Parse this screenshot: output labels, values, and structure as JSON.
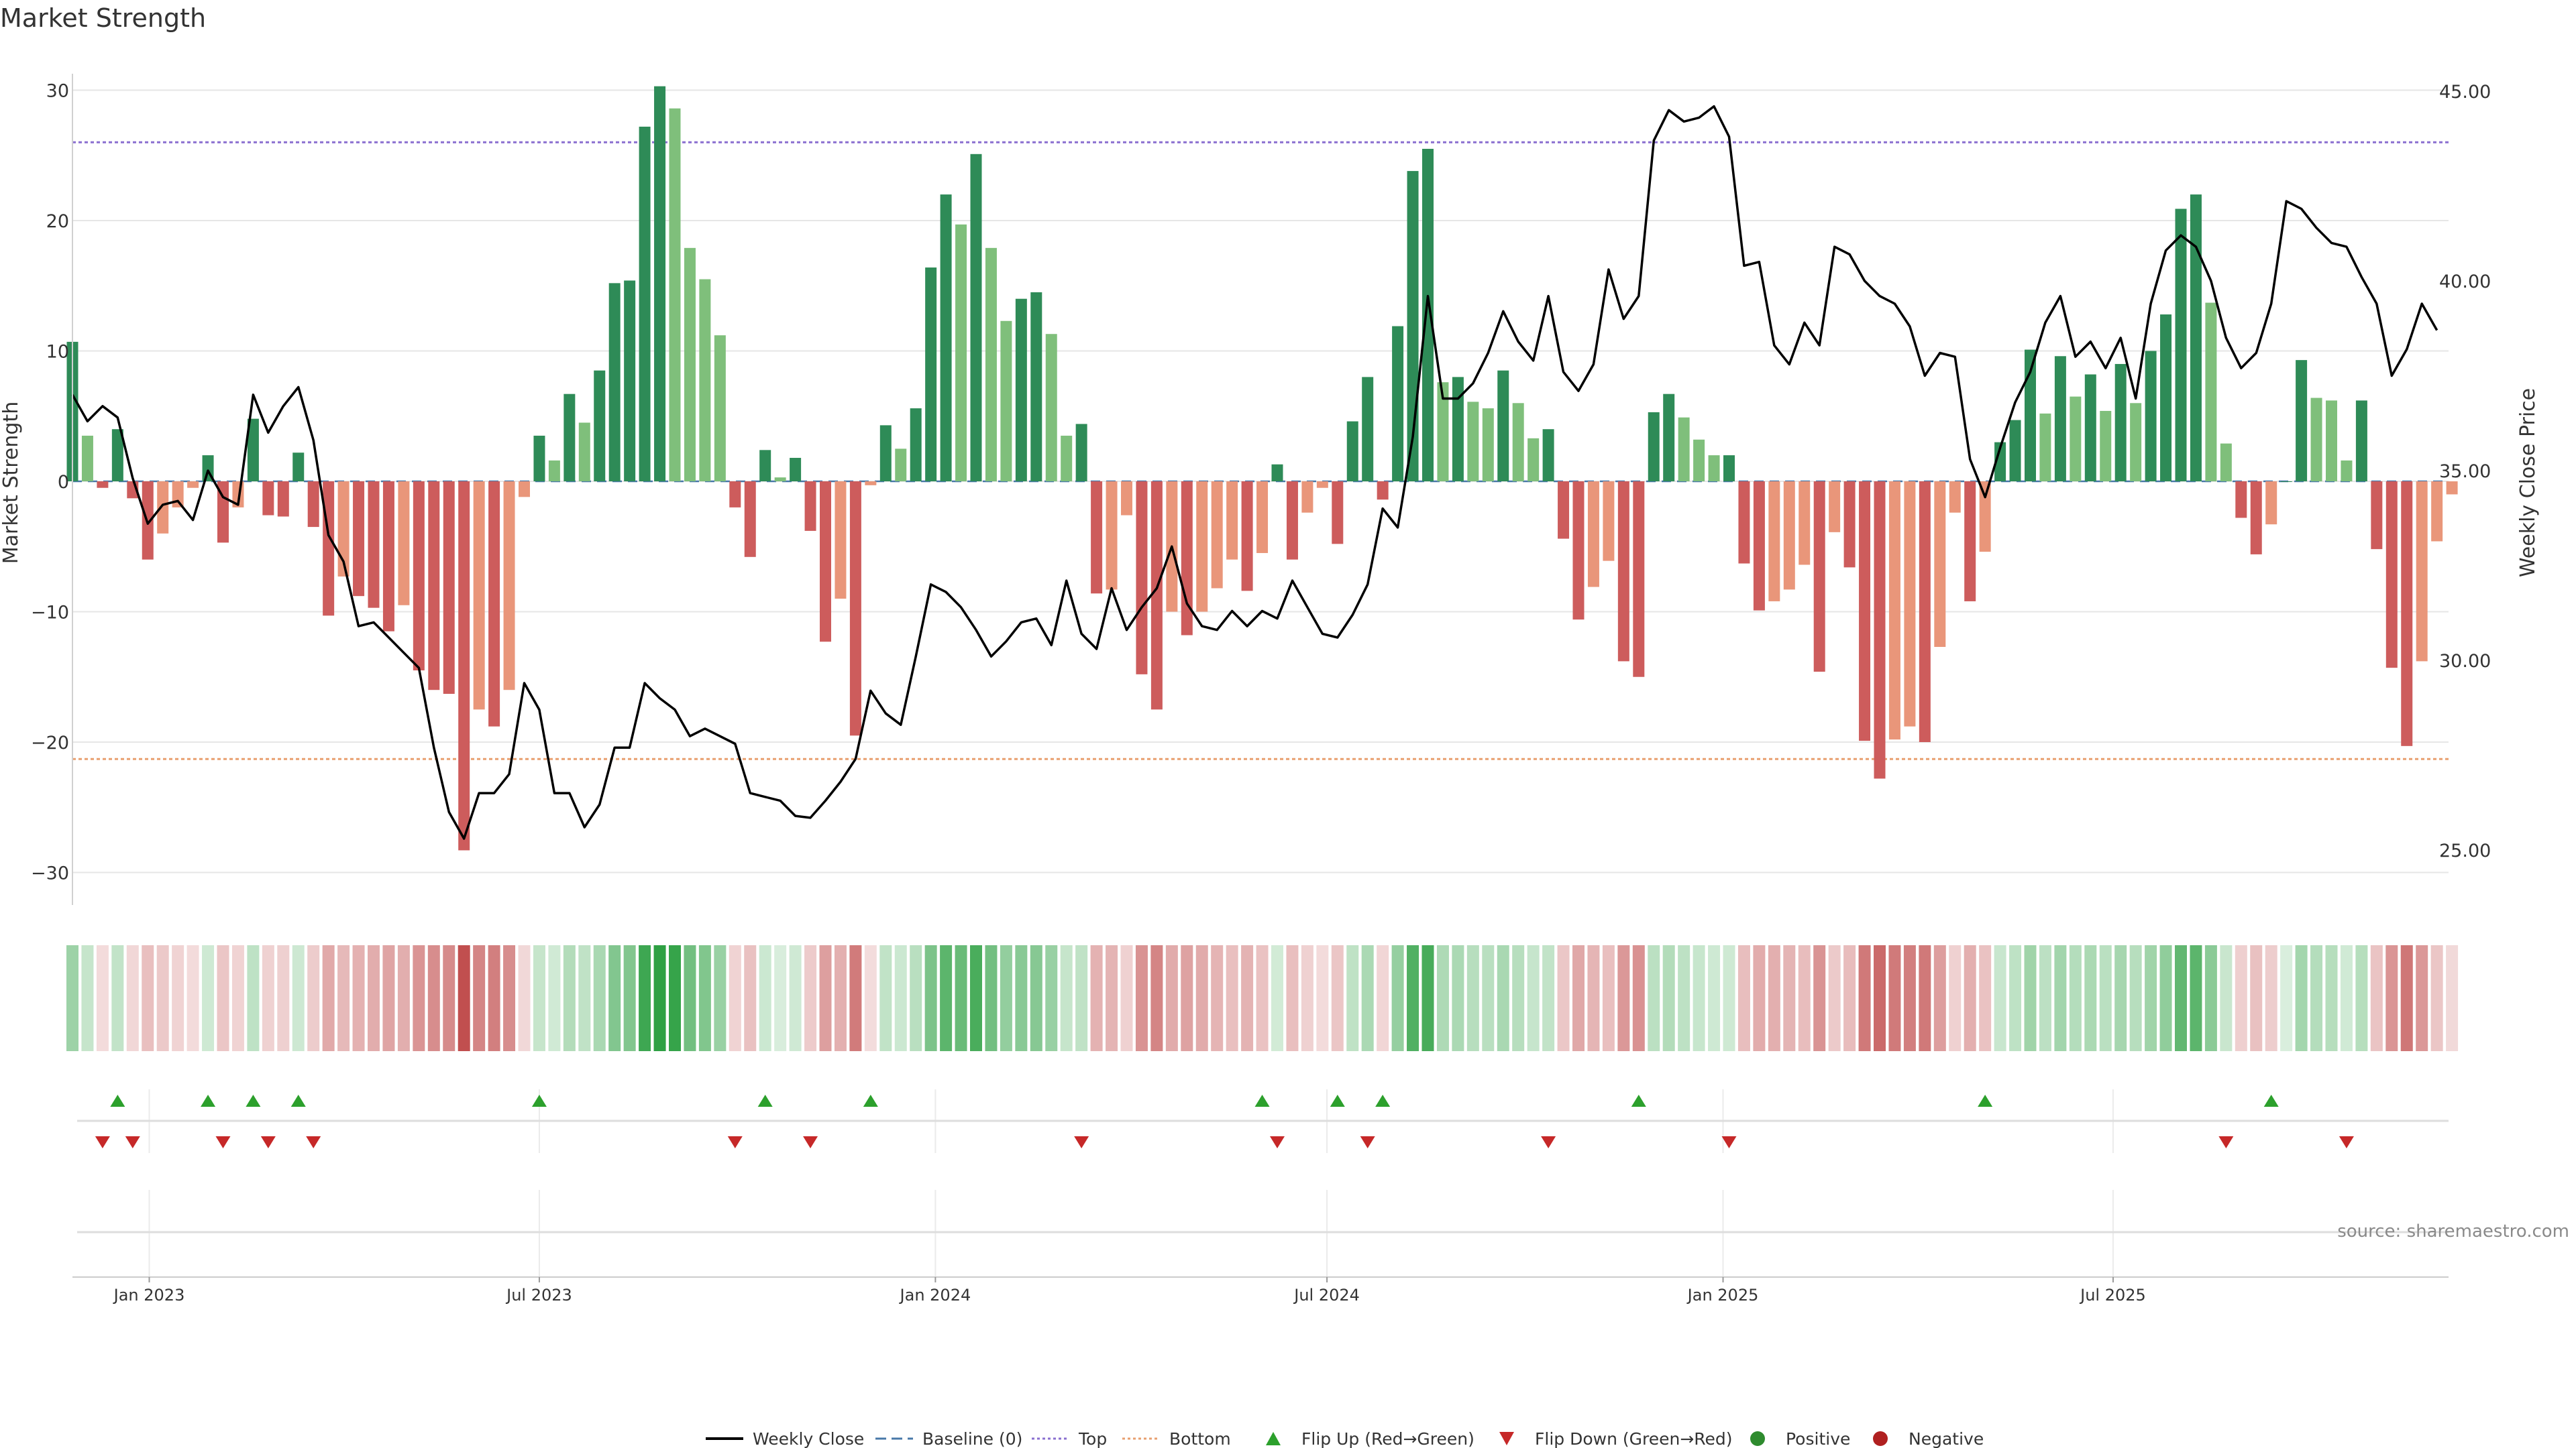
{
  "chart_data": {
    "type": "bar",
    "title": "Market Strength",
    "ylabel_left": "Market Strength",
    "ylabel_right": "Weekly Close Price",
    "source": "source: sharemaestro.com",
    "x_start_week": "2022-11-28",
    "ylim_left": [
      -33,
      32
    ],
    "ylim_right": [
      24.0,
      46.0
    ],
    "left_ticks": [
      "30",
      "20",
      "10",
      "0",
      "−10",
      "−20",
      "−30"
    ],
    "left_tick_values": [
      30,
      20,
      10,
      0,
      -10,
      -20,
      -30
    ],
    "right_ticks": [
      "45.00",
      "40.00",
      "35.00",
      "30.00",
      "25.00"
    ],
    "right_tick_values": [
      45,
      40,
      35,
      30,
      25
    ],
    "date_ticks": [
      {
        "label": "Jan 2023",
        "week": 5.1
      },
      {
        "label": "Jul 2023",
        "week": 31.0
      },
      {
        "label": "Jan 2024",
        "week": 57.3
      },
      {
        "label": "Jul 2024",
        "week": 83.3
      },
      {
        "label": "Jan 2025",
        "week": 109.6
      },
      {
        "label": "Jul 2025",
        "week": 135.5
      }
    ],
    "reference_lines": {
      "top": 26.0,
      "bottom": -21.3,
      "baseline": 0
    },
    "series": [
      {
        "name": "Market Strength",
        "values": [
          10.7,
          3.5,
          -0.5,
          4.0,
          -1.3,
          -6.0,
          -4.0,
          -2.0,
          -0.5,
          2.0,
          -4.7,
          -2.0,
          4.8,
          -2.6,
          -2.7,
          2.2,
          -3.5,
          -10.3,
          -7.3,
          -8.8,
          -9.7,
          -11.5,
          -9.5,
          -14.5,
          -16.0,
          -16.3,
          -28.3,
          -17.5,
          -18.8,
          -16.0,
          -1.2,
          3.5,
          1.6,
          6.7,
          4.5,
          8.5,
          15.2,
          15.4,
          27.2,
          30.3,
          28.6,
          17.9,
          15.5,
          11.2,
          -2.0,
          -5.8,
          2.4,
          0.3,
          1.8,
          -3.8,
          -12.3,
          -9.0,
          -19.5,
          -0.3,
          4.3,
          2.5,
          5.6,
          16.4,
          22.0,
          19.7,
          25.1,
          17.9,
          12.3,
          14.0,
          14.5,
          11.3,
          3.5,
          4.4,
          -8.6,
          -8.3,
          -2.6,
          -14.8,
          -17.5,
          -10.0,
          -11.8,
          -10.0,
          -8.2,
          -6.0,
          -8.4,
          -5.5,
          1.3,
          -6.0,
          -2.4,
          -0.5,
          -4.8,
          4.6,
          8.0,
          -1.4,
          11.9,
          23.8,
          25.5,
          7.6,
          8.0,
          6.1,
          5.6,
          8.5,
          6.0,
          3.3,
          4.0,
          -4.4,
          -10.6,
          -8.1,
          -6.1,
          -13.8,
          -15.0,
          5.3,
          6.7,
          4.9,
          3.2,
          2.0,
          2.0,
          -6.3,
          -9.9,
          -9.2,
          -8.3,
          -6.4,
          -14.6,
          -3.9,
          -6.6,
          -19.9,
          -22.8,
          -19.8,
          -18.8,
          -20.0,
          -12.7,
          -2.4,
          -9.2,
          -5.4,
          3.0,
          4.7,
          10.1,
          5.2,
          9.6,
          6.5,
          8.2,
          5.4,
          9.0,
          6.0,
          10.0,
          12.8,
          20.9,
          22.0,
          13.7,
          2.9,
          -2.8,
          -5.6,
          -3.3,
          0.0,
          9.3,
          6.4,
          6.2,
          1.6,
          6.2,
          -5.2,
          -14.3,
          -20.3,
          -13.8,
          -4.6,
          -1.0
        ]
      },
      {
        "name": "Weekly Close",
        "values": [
          37.0,
          36.3,
          36.7,
          36.4,
          34.8,
          33.6,
          34.1,
          34.2,
          33.7,
          35.0,
          34.3,
          34.1,
          37.0,
          36.0,
          36.7,
          37.2,
          35.8,
          33.3,
          32.6,
          30.9,
          31.0,
          30.6,
          30.2,
          29.8,
          27.7,
          26.0,
          25.3,
          26.5,
          26.5,
          27.0,
          29.4,
          28.7,
          26.5,
          26.5,
          25.6,
          26.2,
          27.7,
          27.7,
          29.4,
          29.0,
          28.7,
          28.0,
          28.2,
          28.0,
          27.8,
          26.5,
          26.4,
          26.3,
          25.9,
          25.85,
          26.3,
          26.8,
          27.4,
          29.2,
          28.6,
          28.3,
          30.1,
          32.0,
          31.8,
          31.4,
          30.8,
          30.1,
          30.5,
          31.0,
          31.1,
          30.4,
          32.1,
          30.7,
          30.3,
          31.9,
          30.8,
          31.4,
          31.9,
          33.0,
          31.5,
          30.9,
          30.8,
          31.3,
          30.9,
          31.3,
          31.1,
          32.1,
          31.4,
          30.7,
          30.6,
          31.2,
          32.0,
          34.0,
          33.5,
          35.9,
          39.6,
          36.9,
          36.9,
          37.3,
          38.1,
          39.2,
          38.4,
          37.9,
          39.6,
          37.6,
          37.1,
          37.8,
          40.3,
          39.0,
          39.6,
          43.7,
          44.5,
          44.2,
          44.3,
          44.6,
          43.8,
          40.4,
          40.5,
          38.3,
          37.8,
          38.9,
          38.3,
          40.9,
          40.7,
          40.0,
          39.6,
          39.4,
          38.8,
          37.5,
          38.1,
          38.0,
          35.3,
          34.3,
          35.6,
          36.8,
          37.6,
          38.9,
          39.6,
          38.0,
          38.4,
          37.7,
          38.5,
          36.9,
          39.4,
          40.8,
          41.2,
          40.9,
          40.0,
          38.5,
          37.7,
          38.1,
          39.4,
          42.1,
          41.9,
          41.4,
          41.0,
          40.9,
          40.1,
          39.4,
          37.5,
          38.2,
          39.4,
          38.7
        ]
      }
    ],
    "strip_note": "heat strip: one cell per week colored by market strength",
    "flip_up_weeks": [
      3,
      9,
      12,
      15,
      31,
      46,
      53,
      79,
      84,
      87,
      104,
      127,
      146
    ],
    "flip_down_weeks": [
      2,
      4,
      10,
      13,
      16,
      44,
      49,
      67,
      80,
      86,
      98,
      110,
      143,
      151
    ],
    "legend": [
      {
        "label": "Weekly Close",
        "marker": "line",
        "color": "#000000"
      },
      {
        "label": "Baseline (0)",
        "marker": "dash",
        "color": "#4878a8"
      },
      {
        "label": "Top",
        "marker": "dot",
        "color": "#8a6fd0"
      },
      {
        "label": "Bottom",
        "marker": "dot",
        "color": "#e8a070"
      },
      {
        "label": "Flip Up (Red→Green)",
        "marker": "triangle-up",
        "color": "#2ca02c"
      },
      {
        "label": "Flip Down (Green→Red)",
        "marker": "triangle-down",
        "color": "#c62828"
      },
      {
        "label": "Positive",
        "marker": "circle",
        "color": "#2e8b2e"
      },
      {
        "label": "Negative",
        "marker": "circle",
        "color": "#b02020"
      }
    ],
    "colors": {
      "strong_positive": "#2e8b57",
      "weak_positive": "#7fbf7b",
      "strong_negative": "#cd5c5c",
      "weak_negative": "#e9967a",
      "price_line": "#000000",
      "grid": "#e6e6e6"
    }
  }
}
